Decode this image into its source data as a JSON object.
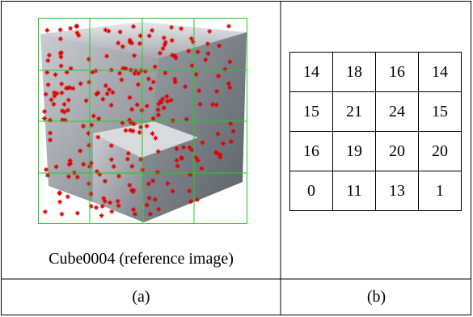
{
  "a": {
    "caption": "Cube0004 (reference image)",
    "label": "(a)"
  },
  "b": {
    "grid": [
      [
        14,
        18,
        16,
        14
      ],
      [
        15,
        21,
        24,
        15
      ],
      [
        16,
        19,
        20,
        20
      ],
      [
        0,
        11,
        13,
        1
      ]
    ],
    "label": "(b)"
  }
}
